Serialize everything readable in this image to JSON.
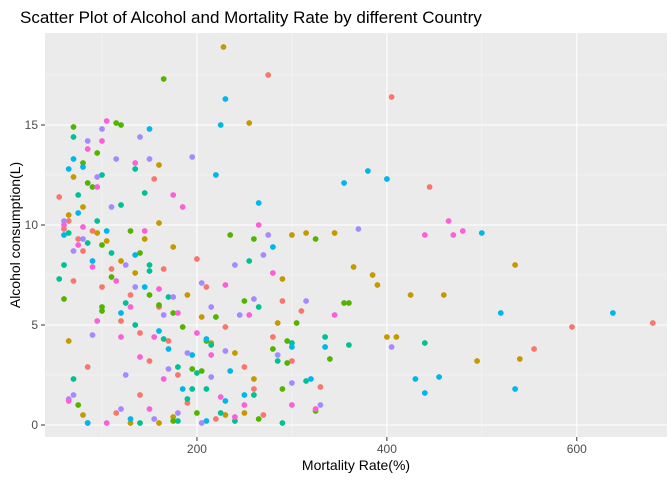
{
  "chart_data": {
    "type": "scatter",
    "title": "Scatter Plot of Alcohol and Mortality Rate by different Country",
    "xlabel": "Mortality Rate(%)",
    "ylabel": "Alcohol consumption(L)",
    "xlim": [
      40,
      695
    ],
    "ylim": [
      -0.6,
      19.6
    ],
    "xticks": [
      200,
      400,
      600
    ],
    "yticks": [
      0,
      5,
      10,
      15
    ],
    "x_tick_labels": [
      "200",
      "400",
      "600"
    ],
    "y_tick_labels": [
      "0",
      "5",
      "10",
      "15"
    ],
    "legend": "none",
    "grid": true,
    "colors": [
      "#F8766D",
      "#C49A00",
      "#53B400",
      "#00C094",
      "#00B6EB",
      "#A58AFF",
      "#FB61D7"
    ],
    "series": [
      {
        "color": "#F8766D",
        "points": [
          [
            275,
            17.5
          ],
          [
            55,
            11.4
          ],
          [
            65,
            10.2
          ],
          [
            60,
            9.8
          ],
          [
            75,
            9.3
          ],
          [
            70,
            7.2
          ],
          [
            80,
            8.7
          ],
          [
            90,
            9.7
          ],
          [
            100,
            6.9
          ],
          [
            110,
            7.8
          ],
          [
            120,
            5.2
          ],
          [
            130,
            6.5
          ],
          [
            140,
            4.6
          ],
          [
            150,
            3.2
          ],
          [
            160,
            5.9
          ],
          [
            165,
            7.8
          ],
          [
            170,
            4.2
          ],
          [
            180,
            2.5
          ],
          [
            200,
            8.3
          ],
          [
            210,
            6.9
          ],
          [
            230,
            4.9
          ],
          [
            250,
            2.9
          ],
          [
            260,
            1.8
          ],
          [
            270,
            0.5
          ],
          [
            280,
            4.4
          ],
          [
            290,
            6.2
          ],
          [
            300,
            3.2
          ],
          [
            310,
            5.7
          ],
          [
            330,
            1.9
          ],
          [
            405,
            16.4
          ],
          [
            445,
            11.9
          ],
          [
            555,
            3.8
          ],
          [
            595,
            4.9
          ],
          [
            680,
            5.1
          ],
          [
            140,
            1.5
          ],
          [
            190,
            1.1
          ],
          [
            220,
            0.3
          ],
          [
            115,
            0.6
          ],
          [
            85,
            2.9
          ],
          [
            155,
            12.3
          ]
        ]
      },
      {
        "color": "#C49A00",
        "points": [
          [
            228,
            18.9
          ],
          [
            255,
            15.1
          ],
          [
            65,
            10.5
          ],
          [
            70,
            12.4
          ],
          [
            80,
            10.9
          ],
          [
            95,
            9.6
          ],
          [
            105,
            9.2
          ],
          [
            120,
            8.2
          ],
          [
            135,
            7.6
          ],
          [
            145,
            9.3
          ],
          [
            160,
            10.1
          ],
          [
            175,
            8.9
          ],
          [
            190,
            6.5
          ],
          [
            205,
            5.4
          ],
          [
            215,
            4.1
          ],
          [
            240,
            3.6
          ],
          [
            260,
            2.3
          ],
          [
            285,
            5.1
          ],
          [
            290,
            7.3
          ],
          [
            300,
            9.5
          ],
          [
            315,
            9.6
          ],
          [
            345,
            9.6
          ],
          [
            365,
            7.9
          ],
          [
            385,
            7.5
          ],
          [
            390,
            7.0
          ],
          [
            400,
            4.4
          ],
          [
            410,
            4.4
          ],
          [
            425,
            6.5
          ],
          [
            460,
            6.5
          ],
          [
            535,
            8.0
          ],
          [
            540,
            3.3
          ],
          [
            495,
            3.2
          ],
          [
            65,
            4.2
          ],
          [
            80,
            0.5
          ],
          [
            130,
            0.1
          ],
          [
            160,
            0.1
          ],
          [
            175,
            0.4
          ],
          [
            230,
            0.5
          ],
          [
            250,
            0.6
          ],
          [
            160,
            13.0
          ]
        ]
      },
      {
        "color": "#53B400",
        "points": [
          [
            165,
            17.3
          ],
          [
            70,
            14.9
          ],
          [
            80,
            13.1
          ],
          [
            85,
            12.1
          ],
          [
            90,
            11.9
          ],
          [
            95,
            13.6
          ],
          [
            100,
            9.0
          ],
          [
            110,
            7.4
          ],
          [
            115,
            15.1
          ],
          [
            120,
            15.0
          ],
          [
            130,
            9.7
          ],
          [
            140,
            8.6
          ],
          [
            150,
            6.5
          ],
          [
            160,
            6.0
          ],
          [
            175,
            5.6
          ],
          [
            185,
            4.9
          ],
          [
            195,
            2.8
          ],
          [
            205,
            2.7
          ],
          [
            210,
            4.2
          ],
          [
            220,
            5.4
          ],
          [
            235,
            9.5
          ],
          [
            250,
            6.2
          ],
          [
            260,
            9.3
          ],
          [
            280,
            3.8
          ],
          [
            295,
            4.2
          ],
          [
            305,
            5.1
          ],
          [
            325,
            9.3
          ],
          [
            340,
            3.3
          ],
          [
            355,
            6.1
          ],
          [
            360,
            6.1
          ],
          [
            325,
            0.7
          ],
          [
            60,
            6.3
          ],
          [
            75,
            1.0
          ],
          [
            100,
            5.7
          ],
          [
            175,
            0.2
          ],
          [
            200,
            0.6
          ],
          [
            265,
            0.3
          ],
          [
            290,
            1.8
          ],
          [
            295,
            3.1
          ],
          [
            100,
            5.9
          ]
        ]
      },
      {
        "color": "#00C094",
        "points": [
          [
            70,
            14.4
          ],
          [
            60,
            8.0
          ],
          [
            55,
            7.3
          ],
          [
            65,
            9.6
          ],
          [
            75,
            11.5
          ],
          [
            85,
            9.1
          ],
          [
            95,
            10.2
          ],
          [
            110,
            8.6
          ],
          [
            125,
            6.1
          ],
          [
            135,
            5.0
          ],
          [
            150,
            7.7
          ],
          [
            165,
            4.3
          ],
          [
            180,
            2.9
          ],
          [
            190,
            1.3
          ],
          [
            200,
            2.6
          ],
          [
            210,
            1.8
          ],
          [
            225,
            0.6
          ],
          [
            240,
            0.2
          ],
          [
            265,
            5.9
          ],
          [
            285,
            3.2
          ],
          [
            300,
            4.1
          ],
          [
            315,
            2.2
          ],
          [
            335,
            4.4
          ],
          [
            360,
            4.0
          ],
          [
            440,
            4.1
          ],
          [
            70,
            2.3
          ],
          [
            85,
            0.1
          ],
          [
            140,
            0.1
          ],
          [
            180,
            0.2
          ],
          [
            150,
            8.0
          ],
          [
            120,
            11.0
          ],
          [
            100,
            12.5
          ],
          [
            145,
            11.6
          ],
          [
            170,
            6.4
          ],
          [
            260,
            1.5
          ],
          [
            290,
            0.1
          ],
          [
            215,
            4.0
          ],
          [
            195,
            1.8
          ],
          [
            135,
            12.8
          ],
          [
            255,
            8.2
          ]
        ]
      },
      {
        "color": "#00B6EB",
        "points": [
          [
            230,
            16.3
          ],
          [
            225,
            15.0
          ],
          [
            70,
            13.3
          ],
          [
            80,
            12.9
          ],
          [
            60,
            9.5
          ],
          [
            65,
            12.8
          ],
          [
            75,
            10.6
          ],
          [
            90,
            8.2
          ],
          [
            105,
            9.7
          ],
          [
            120,
            5.6
          ],
          [
            135,
            8.5
          ],
          [
            145,
            6.9
          ],
          [
            160,
            4.7
          ],
          [
            170,
            3.8
          ],
          [
            185,
            1.8
          ],
          [
            195,
            3.5
          ],
          [
            210,
            4.3
          ],
          [
            220,
            12.5
          ],
          [
            235,
            2.7
          ],
          [
            250,
            1.5
          ],
          [
            265,
            11.1
          ],
          [
            280,
            8.9
          ],
          [
            300,
            3.9
          ],
          [
            320,
            2.3
          ],
          [
            335,
            3.9
          ],
          [
            355,
            12.1
          ],
          [
            380,
            12.7
          ],
          [
            400,
            12.3
          ],
          [
            430,
            2.3
          ],
          [
            440,
            1.6
          ],
          [
            455,
            2.4
          ],
          [
            500,
            9.6
          ],
          [
            520,
            5.6
          ],
          [
            535,
            1.8
          ],
          [
            638,
            5.6
          ],
          [
            85,
            0.1
          ],
          [
            130,
            0.3
          ],
          [
            210,
            0.2
          ],
          [
            150,
            14.8
          ],
          [
            230,
            1.2
          ]
        ]
      },
      {
        "color": "#A58AFF",
        "points": [
          [
            85,
            14.2
          ],
          [
            95,
            12.4
          ],
          [
            100,
            14.8
          ],
          [
            60,
            10.2
          ],
          [
            70,
            8.7
          ],
          [
            80,
            9.3
          ],
          [
            110,
            10.9
          ],
          [
            125,
            8.0
          ],
          [
            140,
            14.4
          ],
          [
            150,
            13.3
          ],
          [
            165,
            5.5
          ],
          [
            175,
            6.4
          ],
          [
            190,
            3.6
          ],
          [
            205,
            7.1
          ],
          [
            215,
            5.9
          ],
          [
            230,
            3.7
          ],
          [
            245,
            5.5
          ],
          [
            260,
            6.3
          ],
          [
            270,
            8.5
          ],
          [
            285,
            3.5
          ],
          [
            300,
            2.1
          ],
          [
            330,
            1.0
          ],
          [
            370,
            9.8
          ],
          [
            405,
            3.9
          ],
          [
            70,
            1.5
          ],
          [
            120,
            0.8
          ],
          [
            180,
            0.6
          ],
          [
            205,
            0.1
          ],
          [
            115,
            13.3
          ],
          [
            135,
            6.9
          ],
          [
            90,
            4.5
          ],
          [
            65,
            1.3
          ],
          [
            195,
            13.4
          ],
          [
            170,
            2.8
          ],
          [
            240,
            8.0
          ],
          [
            315,
            6.2
          ],
          [
            275,
            9.5
          ],
          [
            125,
            2.5
          ],
          [
            155,
            0.3
          ],
          [
            215,
            2.4
          ]
        ]
      },
      {
        "color": "#FB61D7",
        "points": [
          [
            105,
            15.2
          ],
          [
            85,
            13.8
          ],
          [
            95,
            11.9
          ],
          [
            100,
            14.2
          ],
          [
            60,
            10.0
          ],
          [
            75,
            9.0
          ],
          [
            90,
            7.9
          ],
          [
            115,
            7.2
          ],
          [
            130,
            5.9
          ],
          [
            145,
            9.7
          ],
          [
            155,
            4.4
          ],
          [
            165,
            2.3
          ],
          [
            180,
            5.6
          ],
          [
            200,
            4.6
          ],
          [
            215,
            3.5
          ],
          [
            225,
            1.4
          ],
          [
            240,
            0.4
          ],
          [
            255,
            5.5
          ],
          [
            265,
            10.0
          ],
          [
            280,
            7.6
          ],
          [
            300,
            1.0
          ],
          [
            325,
            0.8
          ],
          [
            345,
            5.5
          ],
          [
            440,
            9.5
          ],
          [
            465,
            10.2
          ],
          [
            470,
            9.5
          ],
          [
            480,
            9.7
          ],
          [
            65,
            1.2
          ],
          [
            105,
            0.1
          ],
          [
            150,
            0.8
          ],
          [
            185,
            10.9
          ],
          [
            135,
            13.1
          ],
          [
            120,
            4.4
          ],
          [
            160,
            6.8
          ],
          [
            80,
            9.9
          ],
          [
            250,
            1.0
          ],
          [
            230,
            7.0
          ],
          [
            140,
            3.4
          ],
          [
            95,
            5.2
          ],
          [
            175,
            11.5
          ]
        ]
      }
    ]
  }
}
